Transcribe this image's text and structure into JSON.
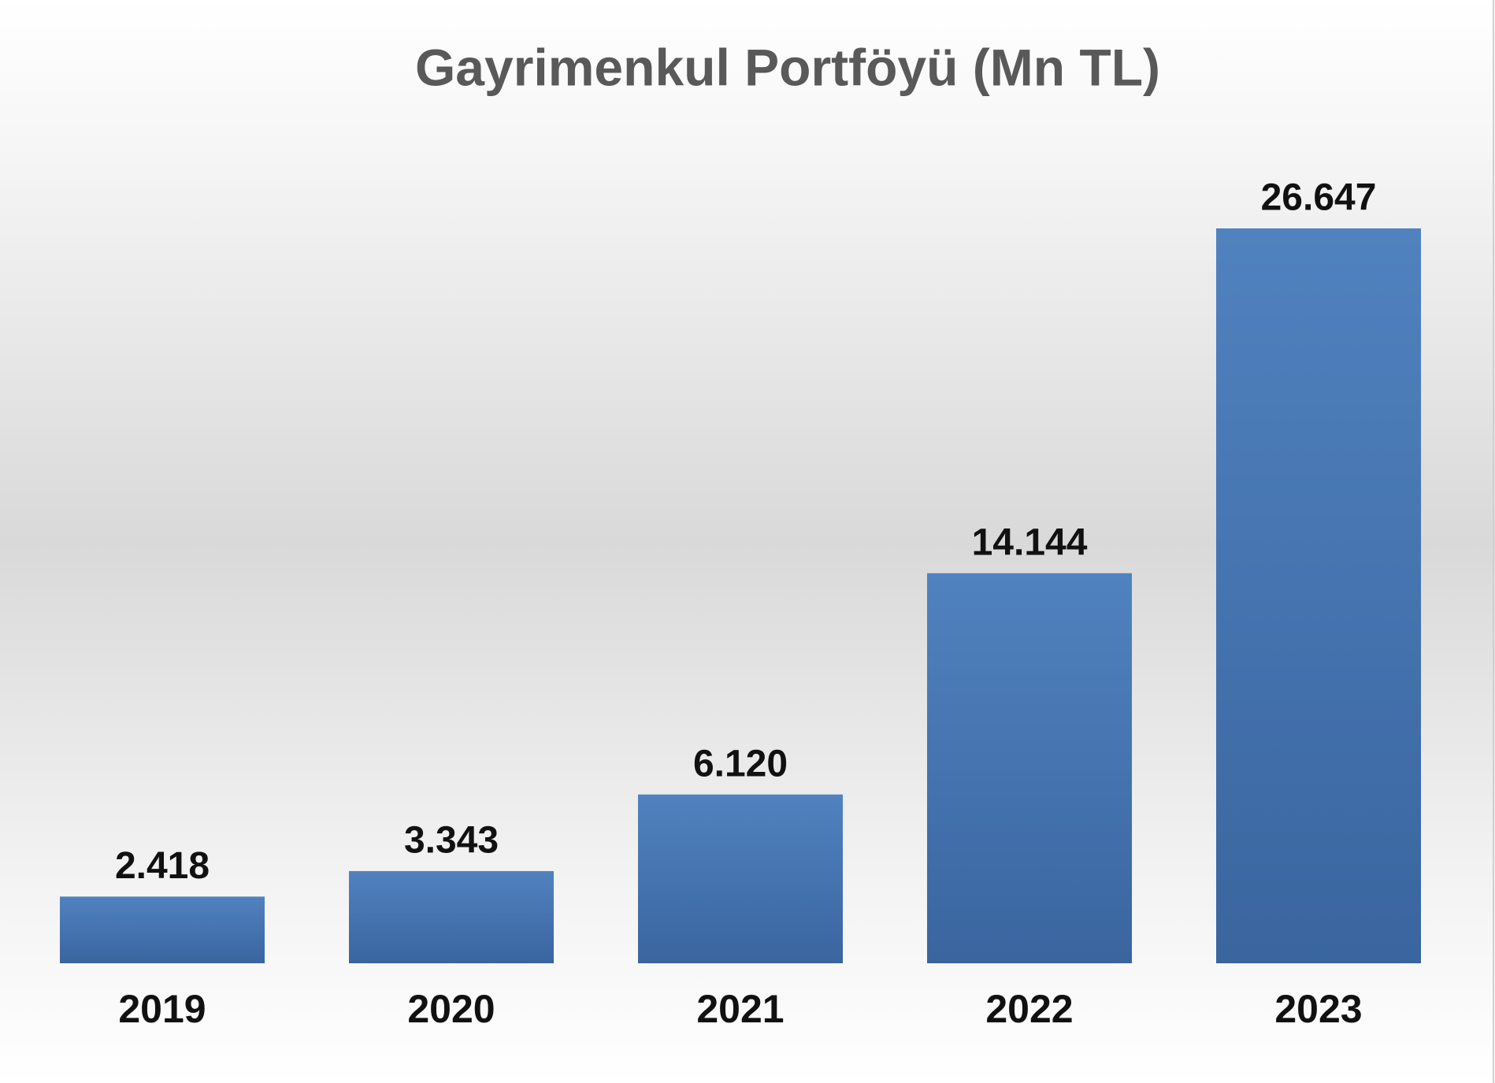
{
  "chart_data": {
    "type": "bar",
    "title": "Gayrimenkul Portföyü (Mn TL)",
    "categories": [
      "2019",
      "2020",
      "2021",
      "2022",
      "2023"
    ],
    "values": [
      2418,
      3343,
      6120,
      14144,
      26647
    ],
    "value_labels": [
      "2.418",
      "3.343",
      "6.120",
      "14.144",
      "26.647"
    ],
    "color": "#4a7bb9"
  }
}
